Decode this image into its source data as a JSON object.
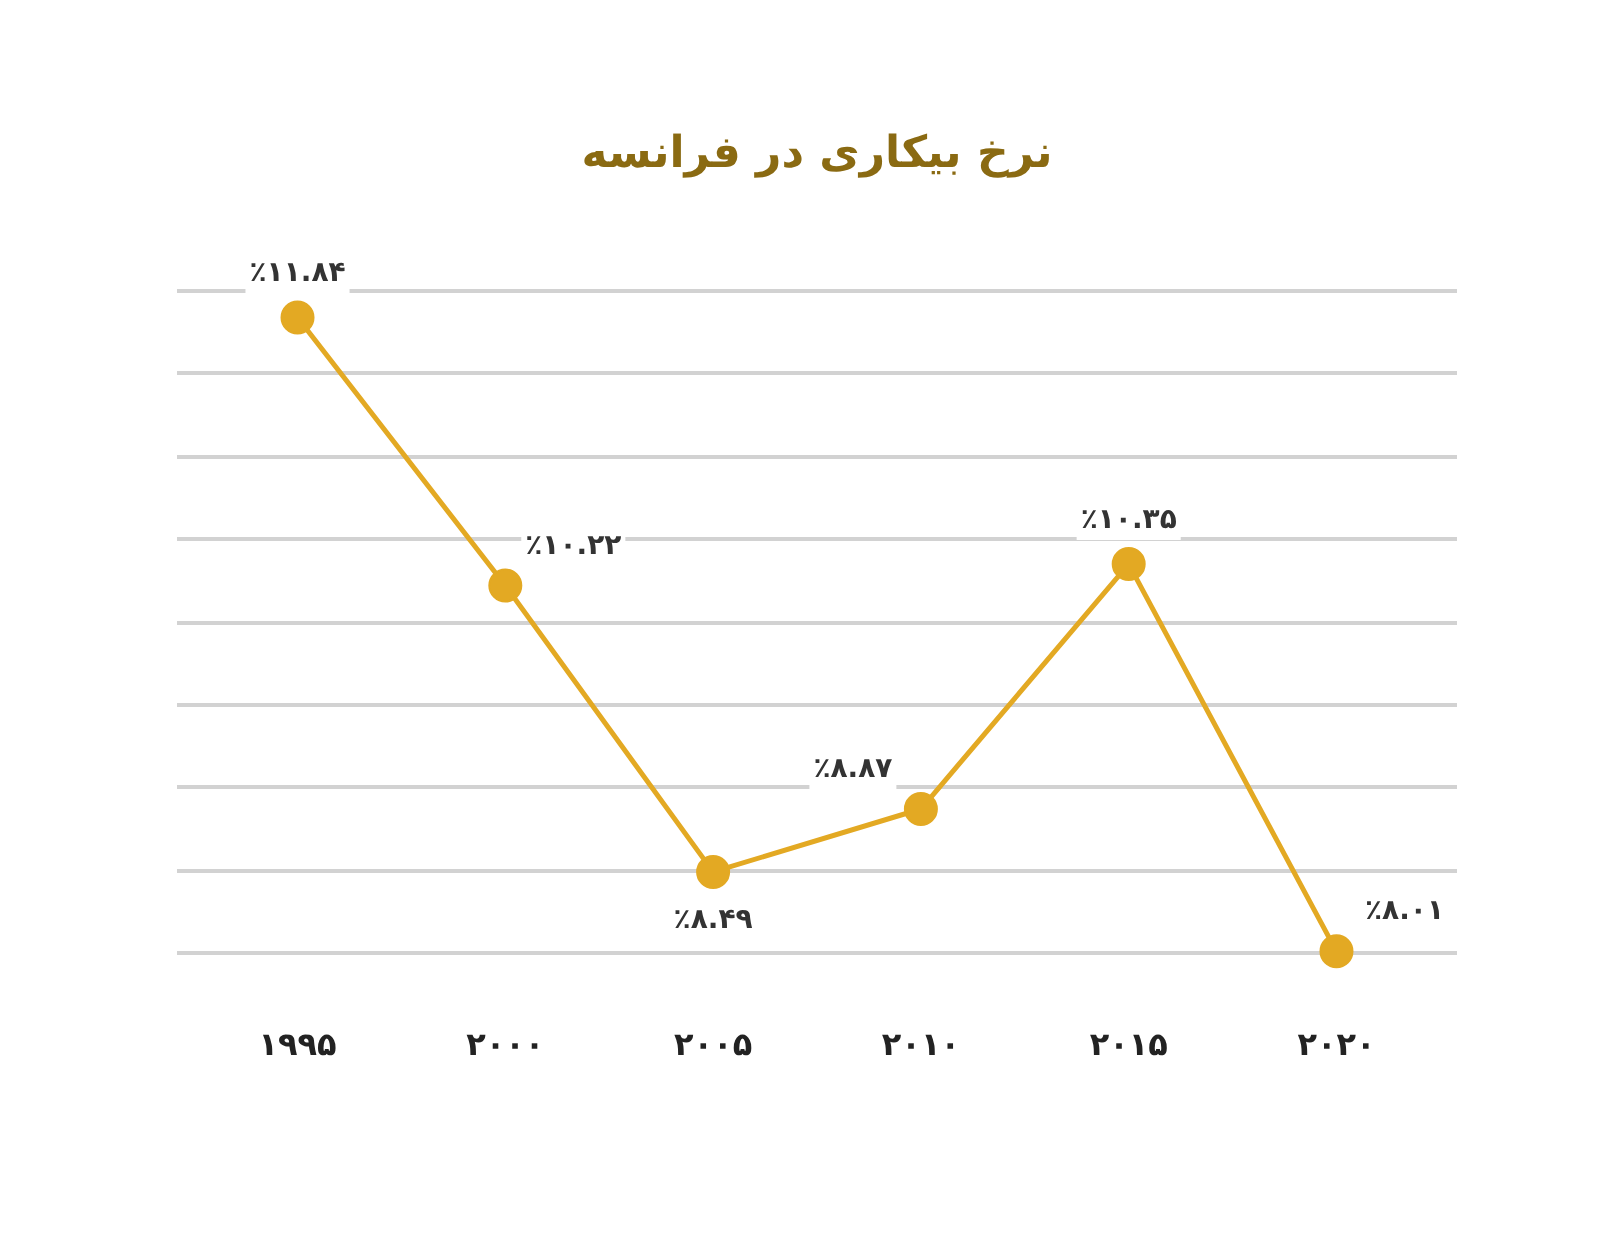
{
  "chart_data": {
    "type": "line",
    "title": "نرخ بیکاری در فرانسه",
    "categories": [
      "۱۹۹۵",
      "۲۰۰۰",
      "۲۰۰۵",
      "۲۰۱۰",
      "۲۰۱۵",
      "۲۰۲۰"
    ],
    "series": [
      {
        "color": "#e3a923",
        "values": [
          11.84,
          10.22,
          8.49,
          8.87,
          10.35,
          8.01
        ],
        "value_labels": [
          "٪۱۱.۸۴",
          "٪۱۰.۲۲",
          "٪۸.۴۹",
          "٪۸.۸۷",
          "٪۱۰.۳۵",
          "٪۸.۰۱"
        ]
      }
    ],
    "yticks": [
      {
        "value": 8,
        "label": null
      },
      {
        "value": 8.5,
        "label": null
      },
      {
        "value": 9,
        "label": null
      },
      {
        "value": 9.5,
        "label": null
      },
      {
        "value": 10,
        "label": null
      },
      {
        "value": 10.5,
        "label": null
      },
      {
        "value": 11,
        "label": null
      },
      {
        "value": 11.5,
        "label": null
      },
      {
        "value": 12,
        "label": null
      }
    ],
    "grid": "y",
    "tick_labels": "x",
    "marker": "circle",
    "line_style": "solid"
  }
}
